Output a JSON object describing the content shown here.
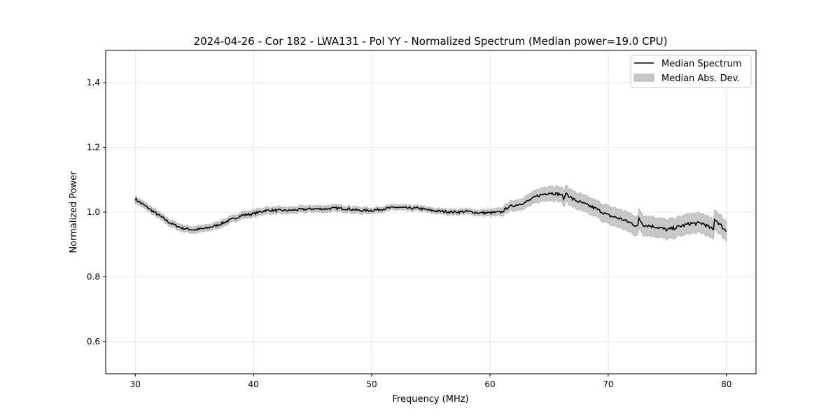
{
  "chart_data": {
    "type": "line",
    "title": "2024-04-26 - Cor 182 - LWA131 - Pol YY - Normalized Spectrum (Median power=19.0 CPU)",
    "xlabel": "Frequency (MHz)",
    "ylabel": "Normalized Power",
    "xlim": [
      27.5,
      82.5
    ],
    "ylim": [
      0.5,
      1.5
    ],
    "xticks": [
      30,
      40,
      50,
      60,
      70,
      80
    ],
    "yticks": [
      0.6,
      0.8,
      1.0,
      1.2,
      1.4
    ],
    "ytick_labels": [
      "0.6",
      "0.8",
      "1.0",
      "1.2",
      "1.4"
    ],
    "grid": true,
    "legend_position": "top-right",
    "legend": [
      "Median Spectrum",
      "Median Abs. Dev."
    ],
    "colors": {
      "line": "#000000",
      "band": "#c8c8c8",
      "grid": "#e0e0e0"
    },
    "series": [
      {
        "name": "Median Spectrum",
        "x": [
          30,
          31,
          32,
          33,
          34,
          35,
          36,
          37,
          38,
          39,
          40,
          41,
          42,
          43,
          44,
          45,
          46,
          47,
          48,
          49,
          50,
          51,
          52,
          53,
          54,
          55,
          56,
          57,
          58,
          59,
          60,
          61,
          61.5,
          62,
          63,
          64,
          65,
          66,
          66.3,
          66.4,
          67,
          68,
          69,
          70,
          71,
          72,
          72.5,
          72.6,
          73,
          74,
          75,
          76,
          77,
          78,
          78.9,
          79,
          80
        ],
        "y": [
          1.04,
          1.015,
          0.99,
          0.965,
          0.95,
          0.945,
          0.95,
          0.96,
          0.975,
          0.99,
          0.995,
          1.005,
          1.005,
          1.005,
          1.008,
          1.01,
          1.01,
          1.012,
          1.01,
          1.005,
          1.005,
          1.01,
          1.015,
          1.012,
          1.012,
          1.005,
          1.002,
          1.0,
          1.002,
          0.998,
          0.998,
          1.0,
          1.015,
          1.02,
          1.03,
          1.05,
          1.06,
          1.055,
          1.04,
          1.06,
          1.04,
          1.025,
          1.01,
          0.99,
          0.98,
          0.965,
          0.955,
          0.98,
          0.96,
          0.955,
          0.945,
          0.955,
          0.965,
          0.965,
          0.945,
          0.98,
          0.94
        ]
      },
      {
        "name": "Median Abs. Dev.",
        "mad": [
          0.01,
          0.01,
          0.01,
          0.01,
          0.01,
          0.01,
          0.01,
          0.01,
          0.01,
          0.01,
          0.01,
          0.01,
          0.01,
          0.01,
          0.01,
          0.01,
          0.01,
          0.01,
          0.01,
          0.01,
          0.008,
          0.008,
          0.008,
          0.008,
          0.008,
          0.008,
          0.008,
          0.008,
          0.008,
          0.008,
          0.01,
          0.012,
          0.015,
          0.015,
          0.018,
          0.02,
          0.022,
          0.022,
          0.025,
          0.025,
          0.025,
          0.025,
          0.025,
          0.028,
          0.028,
          0.03,
          0.03,
          0.03,
          0.03,
          0.03,
          0.03,
          0.03,
          0.03,
          0.03,
          0.03,
          0.03,
          0.03
        ]
      }
    ]
  }
}
